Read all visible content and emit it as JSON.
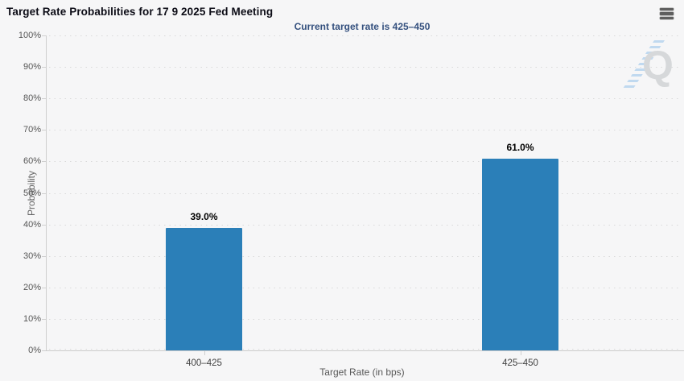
{
  "header": {
    "title": "Target Rate Probabilities for 17 9 2025 Fed Meeting",
    "subtitle": "Current target rate is 425–450"
  },
  "toolbar": {
    "menu_icon": "hamburger-icon"
  },
  "watermark": {
    "icon": "q-logo",
    "letter": "Q"
  },
  "chart_data": {
    "type": "bar",
    "title": "Target Rate Probabilities for 17 9 2025 Fed Meeting",
    "subtitle": "Current target rate is 425–450",
    "categories": [
      "400–425",
      "425–450"
    ],
    "values": [
      39.0,
      61.0
    ],
    "data_labels": [
      "39.0%",
      "61.0%"
    ],
    "xlabel": "Target Rate (in bps)",
    "ylabel": "Probability",
    "ylim": [
      0,
      100
    ],
    "ytick_step": 10,
    "ytick_labels": [
      "0%",
      "10%",
      "20%",
      "30%",
      "40%",
      "50%",
      "60%",
      "70%",
      "80%",
      "90%",
      "100%"
    ],
    "grid": "horizontal-dotted",
    "legend": "none",
    "colors": {
      "bar": "#2b7fb8",
      "subtitle": "#34507e",
      "background": "#f6f6f7",
      "axis": "#cfcfcf",
      "tick_label": "#565656"
    }
  }
}
